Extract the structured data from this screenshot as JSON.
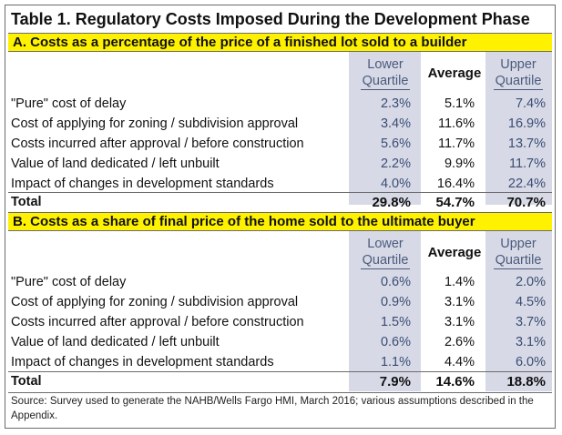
{
  "title": "Table 1.  Regulatory Costs Imposed During the Development Phase",
  "columns": {
    "lower_line1": "Lower",
    "lower_line2": "Quartile",
    "average": "Average",
    "upper_line1": "Upper",
    "upper_line2": "Quartile"
  },
  "section_a": {
    "heading": "A. Costs as a percentage of the price of a finished lot sold to a builder",
    "rows": [
      {
        "label": "\"Pure\" cost of delay",
        "lower": "2.3%",
        "average": "5.1%",
        "upper": "7.4%"
      },
      {
        "label": "Cost of applying for zoning / subdivision approval",
        "lower": "3.4%",
        "average": "11.6%",
        "upper": "16.9%"
      },
      {
        "label": "Costs incurred after approval / before construction",
        "lower": "5.6%",
        "average": "11.7%",
        "upper": "13.7%"
      },
      {
        "label": "Value of land dedicated / left unbuilt",
        "lower": "2.2%",
        "average": "9.9%",
        "upper": "11.7%"
      },
      {
        "label": "Impact of changes in development standards",
        "lower": "4.0%",
        "average": "16.4%",
        "upper": "22.4%"
      }
    ],
    "total": {
      "label": "Total",
      "lower": "29.8%",
      "average": "54.7%",
      "upper": "70.7%"
    }
  },
  "section_b": {
    "heading": "B.  Costs as a share of final price of the home sold to the ultimate buyer",
    "rows": [
      {
        "label": "\"Pure\" cost of delay",
        "lower": "0.6%",
        "average": "1.4%",
        "upper": "2.0%"
      },
      {
        "label": "Cost of applying for zoning / subdivision approval",
        "lower": "0.9%",
        "average": "3.1%",
        "upper": "4.5%"
      },
      {
        "label": "Costs incurred after approval / before construction",
        "lower": "1.5%",
        "average": "3.1%",
        "upper": "3.7%"
      },
      {
        "label": "Value of land dedicated / left unbuilt",
        "lower": "0.6%",
        "average": "2.6%",
        "upper": "3.1%"
      },
      {
        "label": "Impact of changes in development standards",
        "lower": "1.1%",
        "average": "4.4%",
        "upper": "6.0%"
      }
    ],
    "total": {
      "label": "Total",
      "lower": "7.9%",
      "average": "14.6%",
      "upper": "18.8%"
    }
  },
  "source": "Source: Survey used to generate the NAHB/Wells Fargo HMI, March 2016; various assumptions described in the Appendix.",
  "colors": {
    "section_bar": "#fff200",
    "quartile_shade": "#d7dae6",
    "quartile_text": "#3a4c74"
  }
}
